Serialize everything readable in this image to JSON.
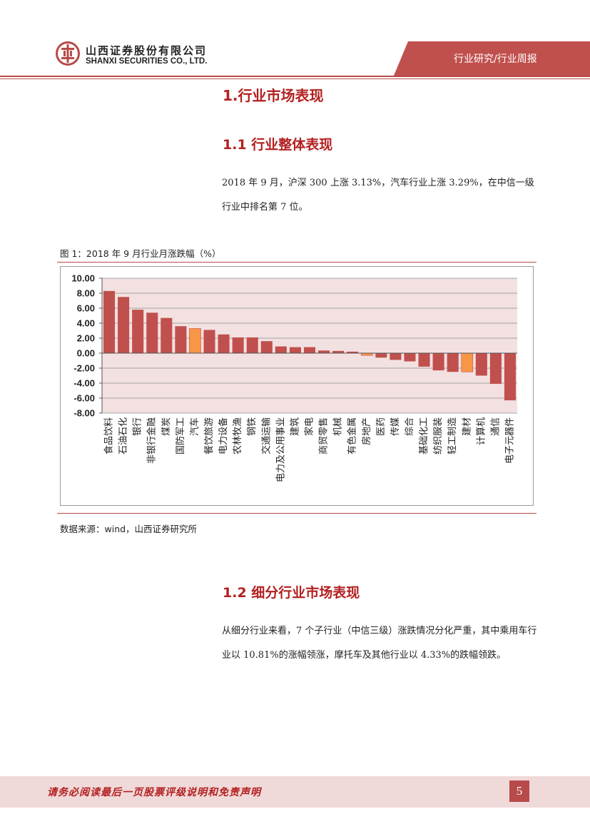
{
  "header": {
    "company_cn": "山西证券股份有限公司",
    "company_en": "SHANXI SECURITIES CO., LTD.",
    "report_type": "行业研究/行业周报",
    "brand_color": "#b84a4a",
    "logo_icon": "shanxi-securities-logo-icon"
  },
  "section_1": {
    "title": "1.行业市场表现"
  },
  "section_1_1": {
    "title": "1.1 行业整体表现",
    "paragraph": "2018 年 9 月，沪深 300 上涨 3.13%，汽车行业上涨 3.29%，在中信一级行业中排名第 7 位。"
  },
  "figure": {
    "caption": "图 1：2018 年 9 月行业月涨跌幅（%）",
    "source": "数据来源：wind，山西证券研究所"
  },
  "chart_data": {
    "type": "bar",
    "ylim": [
      -8,
      10
    ],
    "yticks": [
      "10.00",
      "8.00",
      "6.00",
      "4.00",
      "2.00",
      "0.00",
      "-2.00",
      "-4.00",
      "-6.00",
      "-8.00"
    ],
    "grid": true,
    "plot_background": "#f3e1e1",
    "bar_color": "#c0504d",
    "highlight_colors": [
      "#f79646"
    ],
    "categories": [
      "食品饮料",
      "石油石化",
      "银行",
      "非银行金融",
      "煤炭",
      "国防军工",
      "汽车",
      "餐饮旅游",
      "电力设备",
      "农林牧渔",
      "钢铁",
      "交通运输",
      "电力及公用事业",
      "建筑",
      "家电",
      "商贸零售",
      "机械",
      "有色金属",
      "房地产",
      "医药",
      "传媒",
      "综合",
      "基础化工",
      "纺织服装",
      "轻工制造",
      "建材",
      "计算机",
      "通信",
      "电子元器件"
    ],
    "values": [
      8.3,
      7.5,
      5.8,
      5.4,
      4.7,
      3.6,
      3.29,
      3.1,
      2.5,
      2.1,
      2.1,
      1.6,
      0.9,
      0.8,
      0.8,
      0.35,
      0.3,
      0.2,
      -0.3,
      -0.6,
      -0.9,
      -1.1,
      -1.8,
      -2.3,
      -2.5,
      -2.5,
      -3.0,
      -4.1,
      -6.3
    ],
    "highlight": [
      "汽车",
      "房地产",
      "建材"
    ]
  },
  "section_1_2": {
    "title": "1.2 细分行业市场表现",
    "paragraph": "从细分行业来看，7 个子行业（中信三级）涨跌情况分化严重，其中乘用车行业以 10.81%的涨幅领涨，摩托车及其他行业以 4.33%的跌幅领跌。"
  },
  "footer": {
    "disclaimer": "请务必阅读最后一页股票评级说明和免责声明",
    "page_number": "5"
  }
}
